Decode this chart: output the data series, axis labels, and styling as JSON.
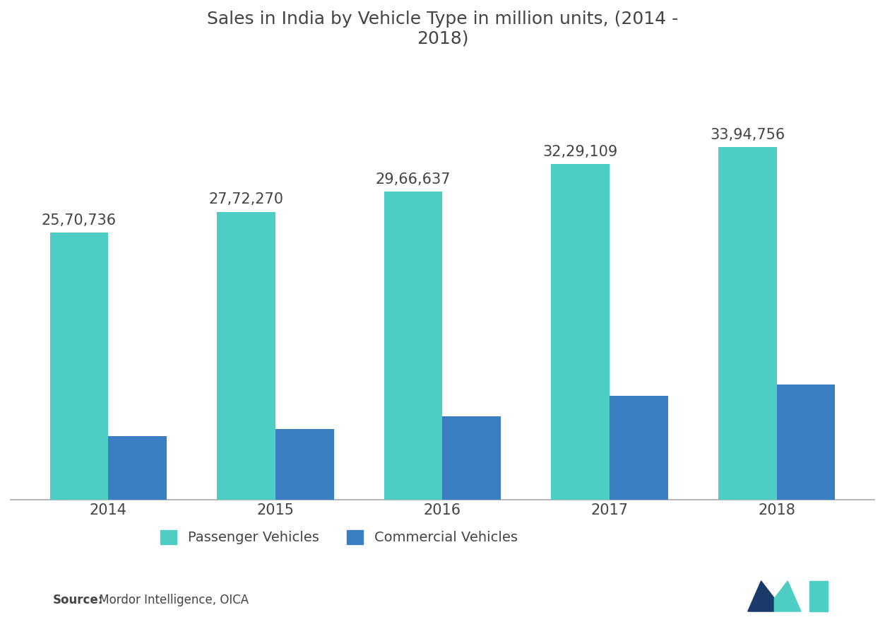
{
  "title": "Sales in India by Vehicle Type in million units, (2014 -\n2018)",
  "years": [
    "2014",
    "2015",
    "2016",
    "2017",
    "2018"
  ],
  "passenger_vehicles": [
    2570736,
    2772270,
    2966637,
    3229109,
    3394756
  ],
  "commercial_vehicles": [
    614948,
    685704,
    807473,
    1000000,
    1112000
  ],
  "passenger_labels": [
    "25,70,736",
    "27,72,270",
    "29,66,637",
    "32,29,109",
    "33,94,756"
  ],
  "passenger_color": "#4ECDC4",
  "commercial_color": "#3A7FC1",
  "background_color": "#ffffff",
  "text_color": "#444444",
  "title_color": "#444444",
  "source_bold": "Source:",
  "source_text": " Mordor Intelligence, OICA",
  "legend_pv": "Passenger Vehicles",
  "legend_cv": "Commercial Vehicles",
  "ylim": [
    0,
    4200000
  ],
  "bar_width": 0.35,
  "label_fontsize": 15,
  "title_fontsize": 18,
  "tick_fontsize": 15,
  "legend_fontsize": 14,
  "source_fontsize": 12
}
